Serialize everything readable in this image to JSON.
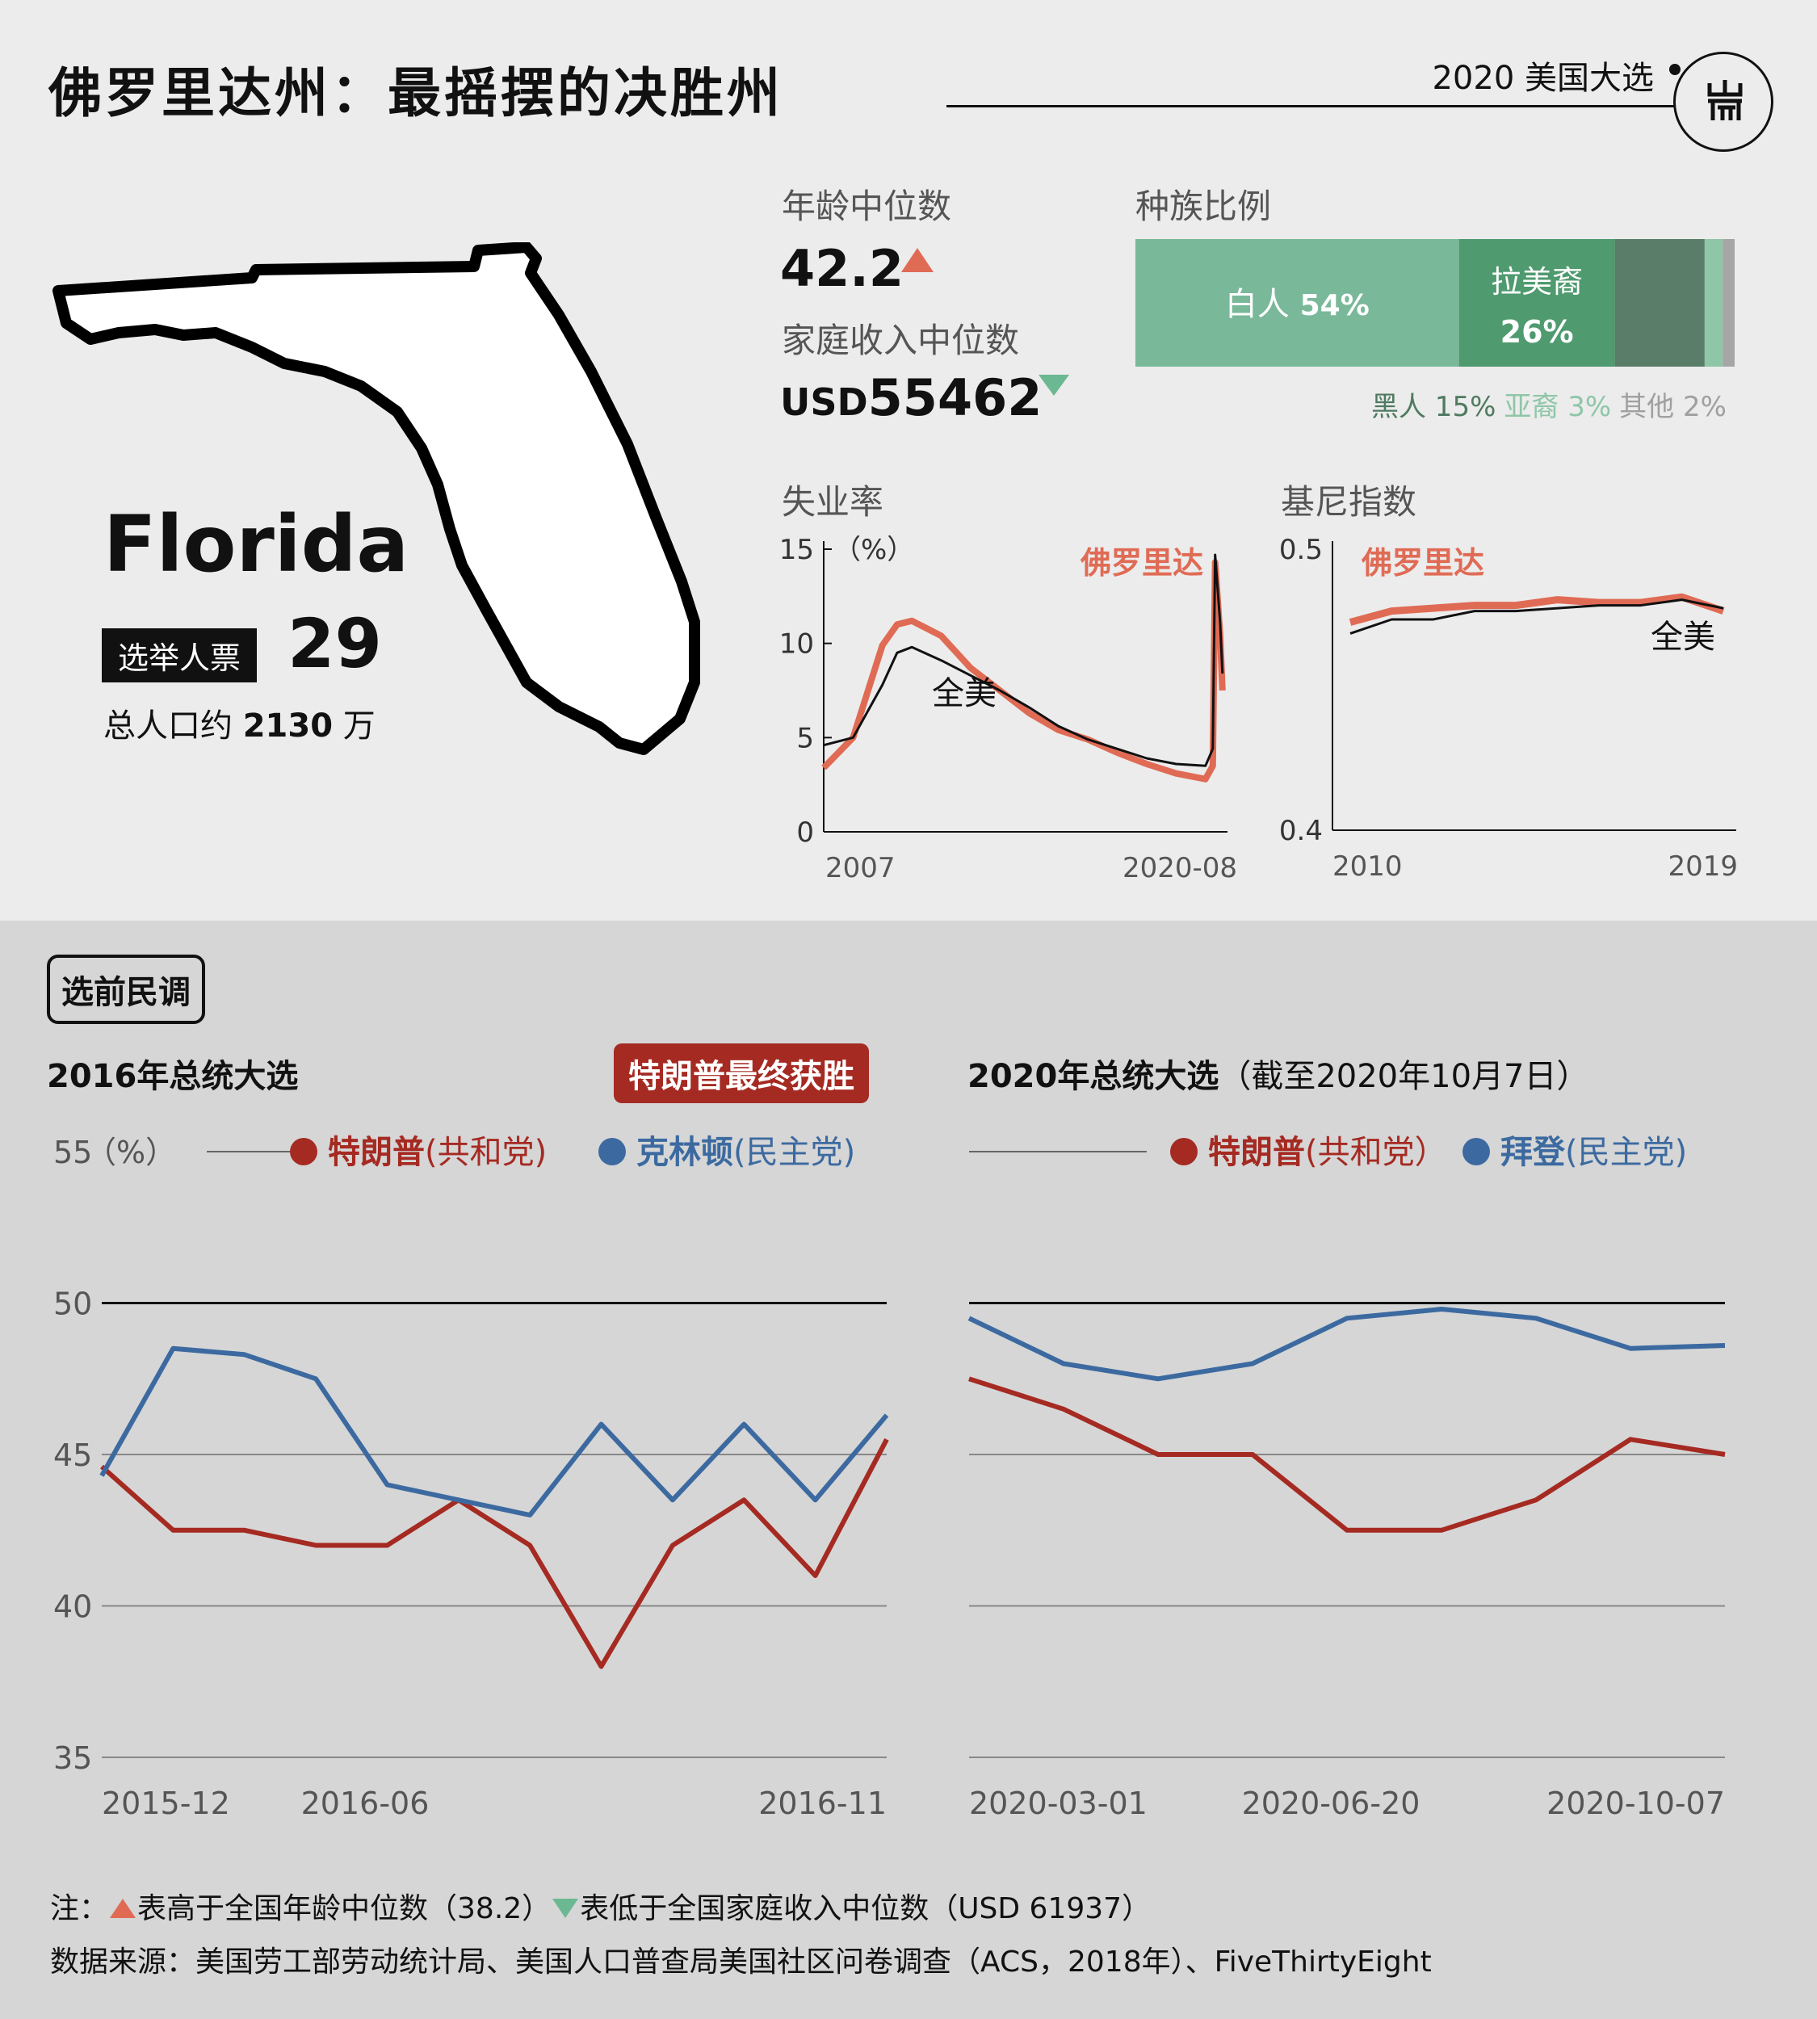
{
  "header": {
    "title": "佛罗里达州：最摇摆的决胜州",
    "tag": "2020 美国大选",
    "logo_text": "端"
  },
  "state": {
    "name_en": "Florida",
    "ev_label": "选举人票",
    "ev_value": "29",
    "pop_prefix": "总人口约",
    "pop_value": "2130",
    "pop_suffix": "万"
  },
  "stats": {
    "age_label": "年龄中位数",
    "age_value": "42.2",
    "income_label": "家庭收入中位数",
    "income_prefix": "USD",
    "income_value": "55462",
    "up_color": "#e06b55",
    "down_color": "#6cb893"
  },
  "race": {
    "label": "种族比例",
    "segments": [
      {
        "name": "白人",
        "pct": 54,
        "value_text": "54%",
        "color": "#7ab89a"
      },
      {
        "name": "拉美裔",
        "pct": 26,
        "value_text": "26%",
        "color": "#4f9a6f"
      },
      {
        "name": "黑人",
        "pct": 15,
        "value_text": "15%",
        "color": "#5a7d69"
      },
      {
        "name": "亚裔",
        "pct": 3,
        "value_text": "3%",
        "color": "#8fc6a8"
      },
      {
        "name": "其他",
        "pct": 2,
        "value_text": "2%",
        "color": "#a6a6a6"
      }
    ]
  },
  "unemployment": {
    "label": "失业率",
    "unit": "（%）",
    "y_ticks": [
      "15",
      "10",
      "5",
      "0"
    ],
    "x_start": "2007",
    "x_end": "2020-08",
    "series_fl": "佛罗里达",
    "series_us": "全美"
  },
  "gini": {
    "label": "基尼指数",
    "y_top": "0.5",
    "y_bottom": "0.4",
    "x_start": "2010",
    "x_end": "2019",
    "series_fl": "佛罗里达",
    "series_us": "全美"
  },
  "polls": {
    "section_label": "选前民调",
    "y_ticks": [
      "55",
      "50",
      "45",
      "40",
      "35"
    ],
    "unit": "（%）",
    "c2016": {
      "title": "2016年总统大选",
      "badge": "特朗普最终获胜",
      "rep_name": "特朗普",
      "rep_party": "(共和党)",
      "dem_name": "克林顿",
      "dem_party": "(民主党)",
      "x_ticks": [
        "2015-12",
        "2016-06",
        "2016-11"
      ]
    },
    "c2020": {
      "title": "2020年总统大选",
      "subtitle": "（截至2020年10月7日）",
      "rep_name": "特朗普",
      "rep_party": "(共和党）",
      "dem_name": "拜登",
      "dem_party": "(民主党)",
      "x_ticks": [
        "2020-03-01",
        "2020-06-20",
        "2020-10-07"
      ]
    }
  },
  "colors": {
    "rep": "#a52a22",
    "dem": "#3c6aa0",
    "fl_line": "#e06b55",
    "us_line": "#111111"
  },
  "footer": {
    "note_prefix": "注：",
    "note_up": "表高于全国年龄中位数（38.2）",
    "note_down": "表低于全国家庭收入中位数（USD 61937）",
    "source": "数据来源：美国劳工部劳动统计局、美国人口普查局美国社区问卷调查（ACS，2018年）、FiveThirtyEight"
  },
  "chart_data": [
    {
      "type": "line",
      "title": "失业率",
      "ylabel": "（%）",
      "ylim": [
        0,
        15
      ],
      "x_range": [
        "2007",
        "2020-08"
      ],
      "series": [
        {
          "name": "佛罗里达",
          "x": [
            2007.0,
            2008.0,
            2009.0,
            2009.5,
            2010.0,
            2011.0,
            2012.0,
            2013.0,
            2014.0,
            2015.0,
            2016.0,
            2017.0,
            2018.0,
            2019.0,
            2020.0,
            2020.25,
            2020.33,
            2020.5,
            2020.58
          ],
          "values": [
            3.4,
            5.0,
            9.9,
            11.0,
            11.2,
            10.4,
            8.7,
            7.5,
            6.3,
            5.4,
            4.9,
            4.2,
            3.6,
            3.1,
            2.8,
            3.5,
            14.3,
            10.4,
            7.5
          ]
        },
        {
          "name": "全美",
          "x": [
            2007.0,
            2008.0,
            2009.0,
            2009.5,
            2010.0,
            2011.0,
            2012.0,
            2013.0,
            2014.0,
            2015.0,
            2016.0,
            2017.0,
            2018.0,
            2019.0,
            2020.0,
            2020.25,
            2020.33,
            2020.5,
            2020.58
          ],
          "values": [
            4.6,
            5.0,
            7.8,
            9.5,
            9.8,
            9.1,
            8.3,
            7.5,
            6.6,
            5.6,
            4.9,
            4.4,
            3.9,
            3.6,
            3.5,
            4.4,
            14.7,
            11.1,
            8.4
          ]
        }
      ]
    },
    {
      "type": "line",
      "title": "基尼指数",
      "ylim": [
        0.4,
        0.5
      ],
      "x": [
        2010,
        2011,
        2012,
        2013,
        2014,
        2015,
        2016,
        2017,
        2018,
        2019
      ],
      "series": [
        {
          "name": "佛罗里达",
          "values": [
            0.474,
            0.478,
            0.479,
            0.48,
            0.48,
            0.482,
            0.481,
            0.481,
            0.483,
            0.478
          ]
        },
        {
          "name": "全美",
          "values": [
            0.47,
            0.475,
            0.475,
            0.478,
            0.478,
            0.479,
            0.48,
            0.48,
            0.482,
            0.479
          ]
        }
      ]
    },
    {
      "type": "line",
      "title": "2016年总统大选",
      "ylim": [
        35,
        55
      ],
      "x": [
        "2015-12",
        "2016-01",
        "2016-02",
        "2016-03",
        "2016-04",
        "2016-05",
        "2016-06",
        "2016-07",
        "2016-08",
        "2016-09",
        "2016-10",
        "2016-11"
      ],
      "series": [
        {
          "name": "特朗普",
          "values": [
            44.6,
            42.5,
            42.5,
            42.0,
            42.0,
            43.5,
            42.0,
            38.0,
            42.0,
            43.5,
            41.0,
            45.5
          ]
        },
        {
          "name": "克林顿",
          "values": [
            44.3,
            48.5,
            48.3,
            47.5,
            44.0,
            43.5,
            43.0,
            46.0,
            43.5,
            46.0,
            43.5,
            46.3
          ]
        }
      ]
    },
    {
      "type": "line",
      "title": "2020年总统大选",
      "ylim": [
        35,
        55
      ],
      "x": [
        "2020-03-01",
        "2020-04-01",
        "2020-05-01",
        "2020-06-01",
        "2020-06-20",
        "2020-07-01",
        "2020-08-01",
        "2020-09-01",
        "2020-10-07"
      ],
      "series": [
        {
          "name": "特朗普",
          "values": [
            47.5,
            46.5,
            45.0,
            45.0,
            42.5,
            42.5,
            43.5,
            45.5,
            45.0
          ]
        },
        {
          "name": "拜登",
          "values": [
            49.5,
            48.0,
            47.5,
            48.0,
            49.5,
            49.8,
            49.5,
            48.5,
            48.6
          ]
        }
      ]
    }
  ]
}
